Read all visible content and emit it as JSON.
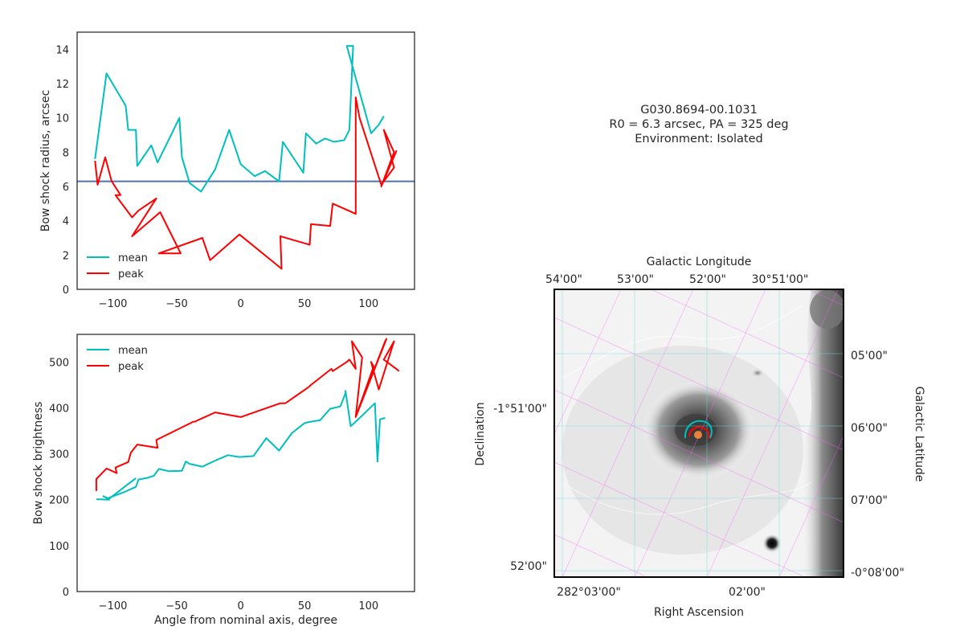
{
  "info": {
    "source": "G030.8694-00.1031",
    "params": "R0 = 6.3 arcsec, PA = 325 deg",
    "environment": "Environment: Isolated"
  },
  "colors": {
    "mean": "#00bfbf",
    "peak": "#ff0000",
    "r0_line": "#4c72b0",
    "gal_grid": "#ff66ff",
    "eq_grid": "#66dddd"
  },
  "chart_data": [
    {
      "type": "line",
      "panel": "radius",
      "xlabel": "",
      "ylabel": "Bow shock radius, arcsec",
      "xlim": [
        -128,
        136
      ],
      "ylim": [
        0,
        15
      ],
      "xticks": [
        -100,
        -50,
        0,
        50,
        100
      ],
      "yticks": [
        0,
        2,
        4,
        6,
        8,
        10,
        12,
        14
      ],
      "xtick_labels": [
        "−100",
        "−50",
        "0",
        "50",
        "100"
      ],
      "ytick_labels": [
        "0",
        "2",
        "4",
        "6",
        "8",
        "10",
        "12",
        "14"
      ],
      "legend": "lower-left",
      "grid": false,
      "hline": 6.3,
      "series": [
        {
          "name": "mean",
          "x": [
            -114,
            -110,
            -105,
            -90,
            -88,
            -82,
            -81,
            -70,
            -65,
            -48,
            -46,
            -40,
            -31,
            -20,
            -9,
            0,
            11,
            19,
            30,
            33,
            49,
            51,
            59,
            66,
            73,
            81,
            85,
            88,
            83,
            102,
            108,
            112
          ],
          "y": [
            7.6,
            9.8,
            12.6,
            10.7,
            9.3,
            9.3,
            7.2,
            8.4,
            7.4,
            10.0,
            7.7,
            6.2,
            5.7,
            7.0,
            9.3,
            7.3,
            6.6,
            6.9,
            6.3,
            8.6,
            6.8,
            9.1,
            8.5,
            8.8,
            8.6,
            8.7,
            9.3,
            14.2,
            14.2,
            9.1,
            9.6,
            10.1
          ]
        },
        {
          "name": "peak",
          "x": [
            -114,
            -112,
            -106,
            -101,
            -94,
            -98,
            -85,
            -80,
            -66,
            -85,
            -63,
            -47,
            -64,
            -30,
            -24,
            -1,
            32,
            31,
            54,
            55,
            70,
            72,
            90,
            90,
            93,
            110,
            120,
            112,
            120,
            110,
            122
          ],
          "y": [
            7.5,
            6.1,
            7.7,
            6.3,
            5.5,
            5.5,
            4.2,
            4.6,
            5.3,
            3.1,
            4.5,
            2.1,
            2.1,
            3.0,
            1.7,
            3.2,
            1.2,
            3.1,
            2.6,
            3.8,
            3.7,
            5.0,
            4.4,
            11.2,
            10.0,
            6.1,
            7.1,
            9.3,
            8.0,
            6.0,
            8.1
          ]
        }
      ]
    },
    {
      "type": "line",
      "panel": "brightness",
      "xlabel": "Angle from nominal axis, degree",
      "ylabel": "Bow shock brightness",
      "xlim": [
        -128,
        136
      ],
      "ylim": [
        0,
        560
      ],
      "xticks": [
        -100,
        -50,
        0,
        50,
        100
      ],
      "yticks": [
        0,
        100,
        200,
        300,
        400,
        500
      ],
      "xtick_labels": [
        "−100",
        "−50",
        "0",
        "50",
        "100"
      ],
      "ytick_labels": [
        "0",
        "100",
        "200",
        "300",
        "400",
        "500"
      ],
      "legend": "upper-left",
      "grid": false,
      "series": [
        {
          "name": "mean",
          "x": [
            -113,
            -103,
            -105,
            -90,
            -82,
            -80,
            -74,
            -68,
            -64,
            -56,
            -46,
            -43,
            -40,
            -30,
            -20,
            -10,
            -1,
            10,
            20,
            30,
            40,
            50,
            55,
            62,
            70,
            78,
            82,
            82,
            86,
            90,
            105,
            107,
            109,
            113
          ],
          "y": [
            201,
            200,
            202,
            218,
            228,
            244,
            247,
            252,
            267,
            262,
            263,
            283,
            278,
            272,
            285,
            297,
            293,
            295,
            334,
            307,
            345,
            367,
            370,
            373,
            398,
            403,
            432,
            437,
            360,
            370,
            410,
            283,
            375,
            378
          ],
          "x2": [
            -108,
            -103,
            -90,
            -82
          ],
          "y2": [
            208,
            202,
            230,
            247
          ]
        },
        {
          "name": "peak",
          "x": [
            -113,
            -113,
            -105,
            -97,
            -98,
            -88,
            -86,
            -81,
            -65,
            -66,
            -37,
            -36,
            -20,
            0,
            31,
            35,
            53,
            55,
            71,
            72,
            83,
            85,
            90,
            87,
            95,
            90,
            113,
            114,
            90,
            104,
            102,
            108,
            120,
            112,
            124
          ],
          "y": [
            219,
            245,
            268,
            258,
            270,
            282,
            302,
            320,
            313,
            330,
            370,
            370,
            390,
            380,
            410,
            410,
            445,
            450,
            485,
            480,
            500,
            505,
            485,
            545,
            510,
            380,
            545,
            550,
            380,
            490,
            500,
            440,
            545,
            505,
            480
          ]
        }
      ]
    }
  ],
  "image_panel": {
    "top_axis_label": "Galactic Longitude",
    "bottom_axis_label": "Right Ascension",
    "left_axis_label": "Declination",
    "right_axis_label": "Galactic Latitude",
    "top_ticks": [
      "54'00\"",
      "53'00\"",
      "52'00\"",
      "30°51'00\""
    ],
    "bottom_ticks": [
      "282°03'00\"",
      "02'00\""
    ],
    "left_ticks": [
      "-1°51'00\"",
      "52'00\""
    ],
    "right_ticks": [
      "05'00\"",
      "06'00\"",
      "07'00\"",
      "-0°08'00\""
    ]
  }
}
